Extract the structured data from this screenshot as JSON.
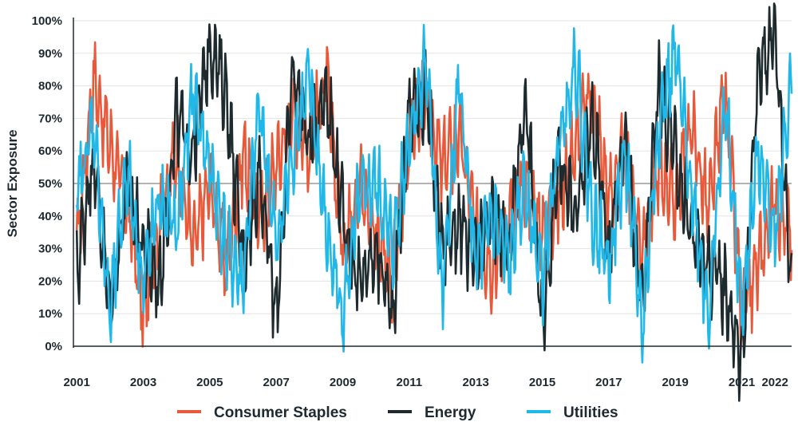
{
  "chart_data": {
    "type": "line",
    "title": "",
    "xlabel": "",
    "ylabel": "Sector Exposure",
    "ylim": [
      0,
      100
    ],
    "xlim": [
      2000.9,
      2022.5
    ],
    "y_ticks": [
      0,
      10,
      20,
      30,
      40,
      50,
      60,
      70,
      80,
      90,
      100
    ],
    "y_tick_labels": [
      "0%",
      "10%",
      "20%",
      "30%",
      "40%",
      "50%",
      "60%",
      "70%",
      "80%",
      "90%",
      "100%"
    ],
    "x_ticks": [
      2001,
      2003,
      2005,
      2007,
      2009,
      2011,
      2013,
      2015,
      2017,
      2019,
      2021,
      2022
    ],
    "x_tick_labels": [
      "2001",
      "2003",
      "2005",
      "2007",
      "2009",
      "2011",
      "2013",
      "2015",
      "2017",
      "2019",
      "2021",
      "2022"
    ],
    "reference_line": 50,
    "grid": "horizontal",
    "legend_position": "bottom",
    "colors": {
      "Consumer Staples": "#e8593a",
      "Energy": "#1e2b2e",
      "Utilities": "#1fb8e8",
      "grid": "#e3e3e3",
      "reference": "#9a9a9a"
    },
    "x": [
      2001.0,
      2001.5,
      2002.0,
      2002.5,
      2003.0,
      2003.5,
      2004.0,
      2004.5,
      2005.0,
      2005.5,
      2006.0,
      2006.5,
      2007.0,
      2007.5,
      2008.0,
      2008.5,
      2009.0,
      2009.5,
      2010.0,
      2010.5,
      2011.0,
      2011.5,
      2012.0,
      2012.5,
      2013.0,
      2013.5,
      2014.0,
      2014.5,
      2015.0,
      2015.5,
      2016.0,
      2016.5,
      2017.0,
      2017.5,
      2018.0,
      2018.5,
      2019.0,
      2019.5,
      2020.0,
      2020.5,
      2021.0,
      2021.5,
      2022.0,
      2022.5
    ],
    "series": [
      {
        "name": "Consumer Staples",
        "values": [
          30,
          82,
          62,
          45,
          10,
          40,
          60,
          30,
          50,
          25,
          60,
          40,
          55,
          72,
          60,
          82,
          30,
          50,
          35,
          20,
          65,
          75,
          55,
          65,
          35,
          25,
          38,
          50,
          35,
          45,
          62,
          78,
          45,
          60,
          30,
          55,
          45,
          68,
          40,
          80,
          8,
          25,
          45,
          35
        ]
      },
      {
        "name": "Energy",
        "values": [
          22,
          60,
          10,
          50,
          30,
          20,
          70,
          60,
          93,
          78,
          25,
          55,
          8,
          85,
          62,
          80,
          40,
          18,
          30,
          10,
          72,
          78,
          30,
          38,
          25,
          40,
          30,
          78,
          5,
          60,
          38,
          70,
          30,
          65,
          12,
          80,
          58,
          35,
          25,
          18,
          -5,
          85,
          97,
          20
        ]
      },
      {
        "name": "Utilities",
        "values": [
          45,
          70,
          8,
          55,
          20,
          45,
          35,
          78,
          55,
          30,
          20,
          75,
          30,
          60,
          82,
          35,
          10,
          45,
          50,
          30,
          65,
          88,
          15,
          80,
          25,
          40,
          25,
          50,
          20,
          62,
          88,
          40,
          25,
          60,
          5,
          68,
          90,
          48,
          10,
          75,
          10,
          60,
          35,
          82
        ]
      }
    ]
  }
}
